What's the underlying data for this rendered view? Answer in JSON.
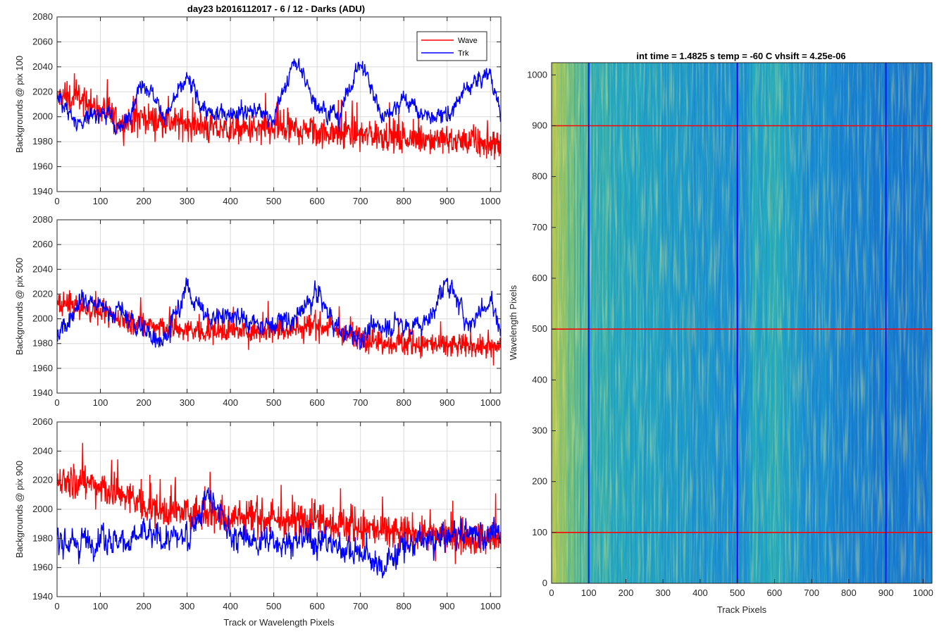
{
  "figure_title": "day23 b2016112017 - 6 / 12 - Darks (ADU)",
  "colors": {
    "wave": "#ff0000",
    "trk": "#0000ff",
    "grid": "#dcdcdc",
    "axis": "#262626"
  },
  "chart_data": [
    {
      "type": "line",
      "title": "day23 b2016112017 - 6 / 12 - Darks (ADU)",
      "xlabel": "",
      "ylabel": "Backgrounds @ pix 100",
      "xlim": [
        0,
        1024
      ],
      "ylim": [
        1940,
        2080
      ],
      "xticks": [
        0,
        100,
        200,
        300,
        400,
        500,
        600,
        700,
        800,
        900,
        1000
      ],
      "yticks": [
        1940,
        1960,
        1980,
        2000,
        2020,
        2040,
        2060,
        2080
      ],
      "grid": true,
      "legend": "top-right",
      "x": [
        0,
        50,
        100,
        150,
        200,
        250,
        300,
        350,
        400,
        450,
        500,
        550,
        600,
        650,
        700,
        750,
        800,
        850,
        900,
        950,
        1000,
        1024
      ],
      "series": [
        {
          "name": "Wave",
          "values": [
            2015,
            2015,
            2005,
            1995,
            2000,
            1995,
            1995,
            1990,
            1990,
            1990,
            1990,
            1990,
            1988,
            1988,
            1985,
            1985,
            1983,
            1982,
            1982,
            1980,
            1978,
            1978
          ]
        },
        {
          "name": "Trk",
          "values": [
            2015,
            1995,
            2005,
            1990,
            2030,
            2000,
            2030,
            2000,
            2005,
            2005,
            2000,
            2045,
            2010,
            2000,
            2045,
            2000,
            2015,
            2000,
            2000,
            2025,
            2035,
            2000
          ]
        }
      ]
    },
    {
      "type": "line",
      "xlabel": "",
      "ylabel": "Backgrounds @ pix 500",
      "xlim": [
        0,
        1024
      ],
      "ylim": [
        1940,
        2080
      ],
      "xticks": [
        0,
        100,
        200,
        300,
        400,
        500,
        600,
        700,
        800,
        900,
        1000
      ],
      "yticks": [
        1940,
        1960,
        1980,
        2000,
        2020,
        2040,
        2060,
        2080
      ],
      "grid": true,
      "x": [
        0,
        50,
        100,
        150,
        200,
        250,
        300,
        350,
        400,
        450,
        500,
        550,
        600,
        650,
        700,
        750,
        800,
        850,
        900,
        950,
        1000,
        1024
      ],
      "series": [
        {
          "name": "Wave",
          "values": [
            2012,
            2010,
            2005,
            2000,
            1995,
            1993,
            1990,
            1990,
            1990,
            1990,
            1992,
            1992,
            1995,
            1990,
            1985,
            1982,
            1980,
            1980,
            1978,
            1978,
            1977,
            1978
          ]
        },
        {
          "name": "Trk",
          "values": [
            1985,
            2015,
            2010,
            2005,
            1990,
            1985,
            2025,
            2000,
            2005,
            1995,
            1995,
            2000,
            2020,
            1990,
            1985,
            1995,
            1995,
            1995,
            2030,
            1995,
            2015,
            1990
          ]
        }
      ]
    },
    {
      "type": "line",
      "xlabel": "Track or Wavelength Pixels",
      "ylabel": "Backgrounds @ pix 900",
      "xlim": [
        0,
        1024
      ],
      "ylim": [
        1940,
        2060
      ],
      "xticks": [
        0,
        100,
        200,
        300,
        400,
        500,
        600,
        700,
        800,
        900,
        1000
      ],
      "yticks": [
        1940,
        1960,
        1980,
        2000,
        2020,
        2040,
        2060
      ],
      "grid": true,
      "x": [
        0,
        50,
        100,
        150,
        200,
        250,
        300,
        350,
        400,
        450,
        500,
        550,
        600,
        650,
        700,
        750,
        800,
        850,
        900,
        950,
        1000,
        1024
      ],
      "series": [
        {
          "name": "Wave",
          "values": [
            2020,
            2020,
            2015,
            2010,
            2003,
            1998,
            1998,
            1998,
            1995,
            1995,
            1992,
            1992,
            1995,
            1990,
            1988,
            1985,
            1983,
            1983,
            1982,
            1980,
            1980,
            1980
          ]
        },
        {
          "name": "Trk",
          "values": [
            1980,
            1978,
            1982,
            1978,
            1982,
            1980,
            1980,
            2010,
            1982,
            1978,
            1978,
            1978,
            1980,
            1975,
            1970,
            1960,
            1975,
            1978,
            1980,
            1985,
            1982,
            1980
          ]
        }
      ]
    },
    {
      "type": "heatmap",
      "title": "int time = 1.4825 s    temp = -60 C    vhsift = 4.25e-06",
      "xlabel": "Track Pixels",
      "ylabel": "Wavelength Pixels",
      "xlim": [
        0,
        1024
      ],
      "ylim": [
        0,
        1024
      ],
      "xticks": [
        0,
        100,
        200,
        300,
        400,
        500,
        600,
        700,
        800,
        900,
        1000
      ],
      "yticks": [
        0,
        100,
        200,
        300,
        400,
        500,
        600,
        700,
        800,
        900,
        1000
      ],
      "colormap": "parula",
      "column_intensity": {
        "x": [
          0,
          50,
          100,
          150,
          200,
          250,
          300,
          350,
          400,
          450,
          500,
          550,
          600,
          650,
          700,
          750,
          800,
          850,
          900,
          950,
          1024
        ],
        "value": [
          0.9,
          0.7,
          0.55,
          0.5,
          0.45,
          0.4,
          0.38,
          0.35,
          0.33,
          0.3,
          0.28,
          0.45,
          0.5,
          0.35,
          0.25,
          0.2,
          0.18,
          0.15,
          0.12,
          0.1,
          0.1
        ]
      },
      "vertical_lines": {
        "x": [
          100,
          500,
          900
        ],
        "color": "#0000ff"
      },
      "horizontal_lines": {
        "y": [
          100,
          500,
          900
        ],
        "color": "#ff0000"
      }
    }
  ]
}
